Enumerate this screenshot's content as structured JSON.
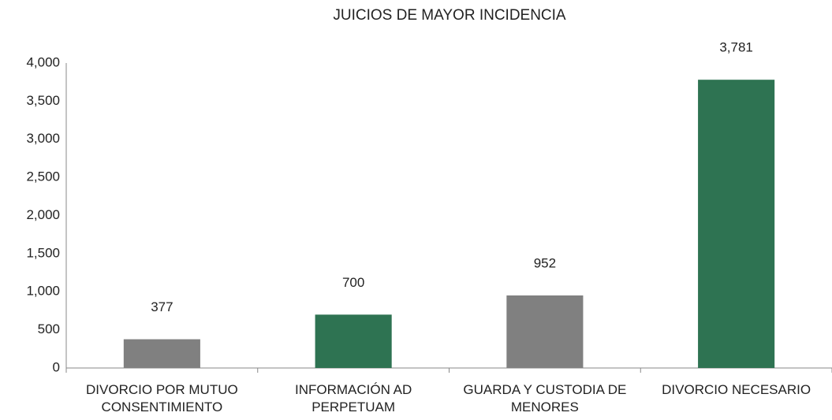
{
  "chart_data": {
    "type": "bar",
    "title": "JUICIOS DE MAYOR INCIDENCIA",
    "categories": [
      "DIVORCIO POR MUTUO CONSENTIMIENTO",
      "INFORMACIÓN AD PERPETUAM",
      "GUARDA Y CUSTODIA DE MENORES",
      "DIVORCIO NECESARIO"
    ],
    "values": [
      377,
      700,
      952,
      3781
    ],
    "value_labels": [
      "377",
      "700",
      "952",
      "3,781"
    ],
    "colors": [
      "#808080",
      "#2e7352",
      "#808080",
      "#2e7352"
    ],
    "ylim": [
      0,
      4000
    ],
    "yticks": [
      0,
      500,
      {
        "value": 1000,
        "label": "1,000"
      },
      {
        "value": 1500,
        "label": "1,500"
      },
      {
        "value": 2000,
        "label": "2,000"
      },
      {
        "value": 2500,
        "label": "2,500"
      },
      {
        "value": 3000,
        "label": "3,000"
      },
      {
        "value": 3500,
        "label": "3,500"
      },
      {
        "value": 4000,
        "label": "4,000"
      }
    ],
    "grid": false
  }
}
